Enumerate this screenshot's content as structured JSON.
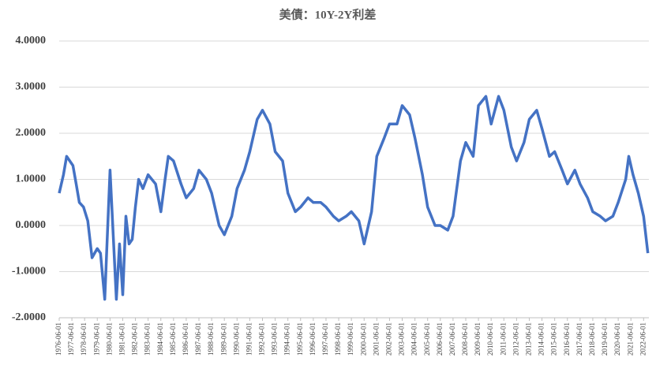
{
  "chart_data": {
    "type": "line",
    "title": "美債：10Y-2Y利差",
    "color": "#4472c4",
    "grid": true,
    "xlim": [
      "1976-06-01",
      "2022-10-31"
    ],
    "ylim": [
      -2,
      4
    ],
    "yticks": [
      {
        "value": -2,
        "label": "-2.0000"
      },
      {
        "value": -1,
        "label": "-1.0000"
      },
      {
        "value": 0,
        "label": "0.0000"
      },
      {
        "value": 1,
        "label": "1.0000"
      },
      {
        "value": 2,
        "label": "2.0000"
      },
      {
        "value": 3,
        "label": "3.0000"
      },
      {
        "value": 4,
        "label": "4.0000"
      }
    ],
    "xticks": [
      "1976-06-01",
      "1977-06-01",
      "1978-06-01",
      "1979-06-01",
      "1980-06-01",
      "1981-06-01",
      "1982-06-01",
      "1983-06-01",
      "1984-06-01",
      "1985-06-01",
      "1986-06-01",
      "1987-06-01",
      "1988-06-01",
      "1989-06-01",
      "1990-06-01",
      "1991-06-01",
      "1992-06-01",
      "1993-06-01",
      "1994-06-01",
      "1995-06-01",
      "1996-06-01",
      "1997-06-01",
      "1998-06-01",
      "1999-06-01",
      "2000-06-01",
      "2001-06-01",
      "2002-06-01",
      "2003-06-01",
      "2004-06-01",
      "2005-06-01",
      "2006-06-01",
      "2007-06-01",
      "2008-06-01",
      "2009-06-01",
      "2010-06-01",
      "2011-06-01",
      "2012-06-01",
      "2013-06-01",
      "2014-06-01",
      "2015-06-01",
      "2016-06-01",
      "2017-06-01",
      "2018-06-01",
      "2019-06-01",
      "2020-06-01",
      "2021-06-01",
      "2022-06-01"
    ],
    "x": [
      "1976-06-01",
      "1976-10-01",
      "1977-01-01",
      "1977-04-01",
      "1977-07-01",
      "1977-10-01",
      "1978-01-01",
      "1978-05-01",
      "1978-09-01",
      "1979-01-01",
      "1979-06-01",
      "1979-09-01",
      "1980-01-01",
      "1980-03-01",
      "1980-06-01",
      "1980-09-01",
      "1980-12-01",
      "1981-03-01",
      "1981-06-01",
      "1981-09-01",
      "1981-12-01",
      "1982-03-01",
      "1982-06-01",
      "1982-09-01",
      "1983-01-01",
      "1983-06-01",
      "1984-01-01",
      "1984-06-01",
      "1984-10-01",
      "1985-01-01",
      "1985-06-01",
      "1986-01-01",
      "1986-06-01",
      "1987-01-01",
      "1987-06-01",
      "1988-01-01",
      "1988-06-01",
      "1989-01-01",
      "1989-06-01",
      "1990-01-01",
      "1990-06-01",
      "1991-01-01",
      "1991-06-01",
      "1992-01-01",
      "1992-06-01",
      "1993-01-01",
      "1993-06-01",
      "1994-01-01",
      "1994-06-01",
      "1995-01-01",
      "1995-06-01",
      "1996-01-01",
      "1996-06-01",
      "1997-01-01",
      "1997-06-01",
      "1998-01-01",
      "1998-06-01",
      "1999-01-01",
      "1999-06-01",
      "2000-01-01",
      "2000-06-01",
      "2001-01-01",
      "2001-06-01",
      "2002-01-01",
      "2002-06-01",
      "2003-01-01",
      "2003-06-01",
      "2004-01-01",
      "2004-06-01",
      "2005-01-01",
      "2005-06-01",
      "2006-01-01",
      "2006-06-01",
      "2007-01-01",
      "2007-06-01",
      "2008-01-01",
      "2008-06-01",
      "2009-01-01",
      "2009-06-01",
      "2010-01-01",
      "2010-06-01",
      "2011-01-01",
      "2011-06-01",
      "2012-01-01",
      "2012-06-01",
      "2013-01-01",
      "2013-06-01",
      "2014-01-01",
      "2014-06-01",
      "2015-01-01",
      "2015-06-01",
      "2016-01-01",
      "2016-06-01",
      "2017-01-01",
      "2017-06-01",
      "2018-01-01",
      "2018-06-01",
      "2019-01-01",
      "2019-06-01",
      "2020-01-01",
      "2020-06-01",
      "2021-01-01",
      "2021-04-01",
      "2021-08-01",
      "2022-01-01",
      "2022-06-01",
      "2022-10-01"
    ],
    "values": [
      0.7,
      1.1,
      1.5,
      1.4,
      1.3,
      0.9,
      0.5,
      0.4,
      0.1,
      -0.7,
      -0.5,
      -0.6,
      -1.6,
      -0.5,
      1.2,
      -0.2,
      -1.6,
      -0.4,
      -1.5,
      0.2,
      -0.4,
      -0.3,
      0.4,
      1.0,
      0.8,
      1.1,
      0.9,
      0.3,
      1.0,
      1.5,
      1.4,
      0.9,
      0.6,
      0.8,
      1.2,
      1.0,
      0.7,
      0.0,
      -0.2,
      0.2,
      0.8,
      1.2,
      1.6,
      2.3,
      2.5,
      2.2,
      1.6,
      1.4,
      0.7,
      0.3,
      0.4,
      0.6,
      0.5,
      0.5,
      0.4,
      0.2,
      0.1,
      0.2,
      0.3,
      0.1,
      -0.4,
      0.3,
      1.5,
      1.9,
      2.2,
      2.2,
      2.6,
      2.4,
      1.9,
      1.1,
      0.4,
      0.0,
      0.0,
      -0.1,
      0.2,
      1.4,
      1.8,
      1.5,
      2.6,
      2.8,
      2.2,
      2.8,
      2.5,
      1.7,
      1.4,
      1.8,
      2.3,
      2.5,
      2.1,
      1.5,
      1.6,
      1.2,
      0.9,
      1.2,
      0.9,
      0.6,
      0.3,
      0.2,
      0.1,
      0.2,
      0.5,
      1.0,
      1.5,
      1.1,
      0.7,
      0.2,
      -0.6
    ]
  }
}
